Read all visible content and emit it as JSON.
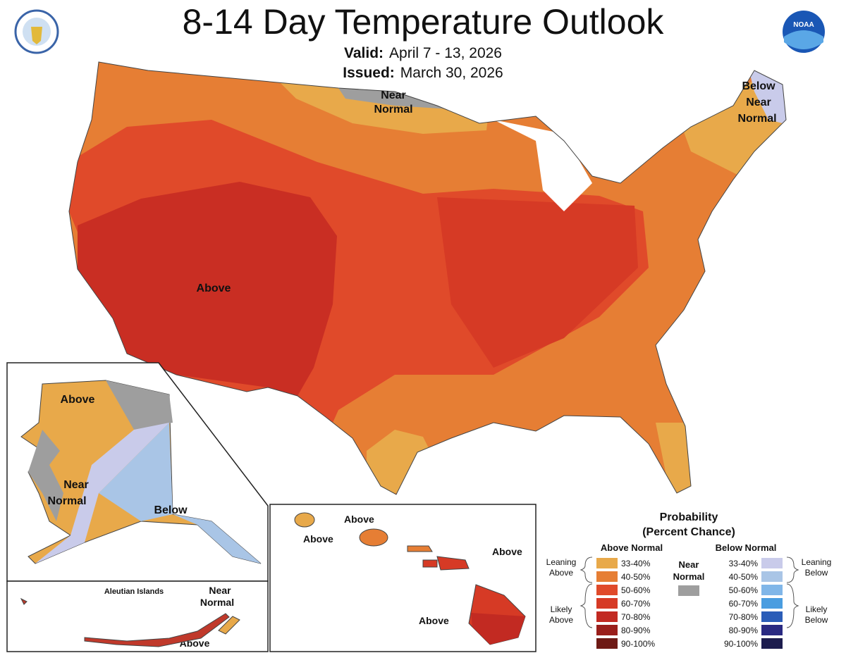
{
  "header": {
    "title": "8-14 Day Temperature Outlook",
    "valid_label": "Valid:",
    "valid_value": "April 7 - 13, 2026",
    "issued_label": "Issued:",
    "issued_value": "March 30, 2026"
  },
  "logos": {
    "left": "Department of Commerce seal",
    "right": "NOAA"
  },
  "map_labels": {
    "conus_near": [
      "Near",
      "Normal"
    ],
    "conus_below": [
      "Below",
      "Near",
      "Normal"
    ],
    "conus_above": "Above",
    "ak_above": "Above",
    "ak_near": [
      "Near",
      "Normal"
    ],
    "ak_below": "Below",
    "aleutian_title": "Aleutian Islands",
    "aleutian_near": [
      "Near",
      "Normal"
    ],
    "aleutian_above": "Above",
    "hi_above_1": "Above",
    "hi_above_2": "Above",
    "hi_above_3": "Above",
    "hi_above_4": "Above"
  },
  "legend": {
    "title": [
      "Probability",
      "(Percent Chance)"
    ],
    "above_header": "Above Normal",
    "below_header": "Below Normal",
    "near_label": [
      "Near",
      "Normal"
    ],
    "leaning_above": [
      "Leaning",
      "Above"
    ],
    "likely_above": [
      "Likely",
      "Above"
    ],
    "leaning_below": [
      "Leaning",
      "Below"
    ],
    "likely_below": [
      "Likely",
      "Below"
    ],
    "ranges": [
      "33-40%",
      "40-50%",
      "50-60%",
      "60-70%",
      "70-80%",
      "80-90%",
      "90-100%"
    ],
    "above_colors": [
      "#e8a94a",
      "#e67e34",
      "#e04a2a",
      "#d63a25",
      "#c22a22",
      "#9a1f1b",
      "#6e1a15"
    ],
    "below_colors": [
      "#c9cbea",
      "#a9c5e6",
      "#80b6e8",
      "#4a9de0",
      "#2b5db8",
      "#2a2a82",
      "#1c1c4e"
    ],
    "near_color": "#9e9e9e"
  }
}
